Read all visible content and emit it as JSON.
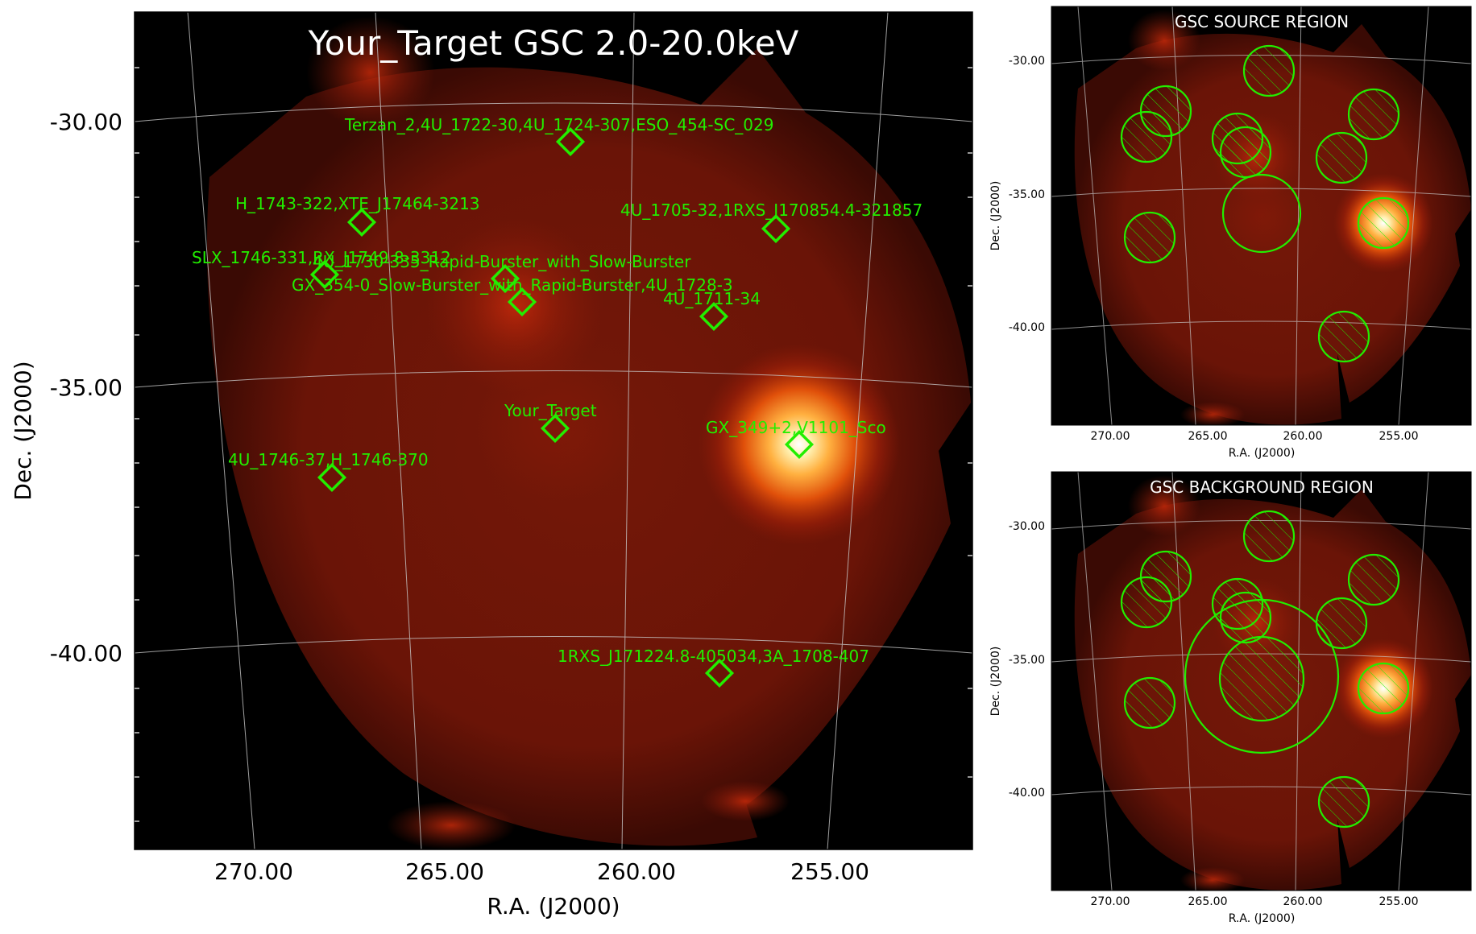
{
  "main": {
    "title": "Your_Target GSC 2.0-20.0keV",
    "xlabel": "R.A. (J2000)",
    "ylabel": "Dec. (J2000)",
    "xticks": [
      "270.00",
      "265.00",
      "260.00",
      "255.00"
    ],
    "yticks": [
      "-30.00",
      "-35.00",
      "-40.00"
    ],
    "sources": [
      "Terzan_2,4U_1722-30,4U_1724-307,ESO_454-SC_029",
      "H_1743-322,XTE_J17464-3213",
      "4U_1705-32,1RXS_J170854.4-321857",
      "SLX_1746-331,RX_J1749.8-3312",
      "4U_1730-335_Rapid-Burster_with_Slow-Burster",
      "GX_354-0_Slow-Burster_with_Rapid-Burster,4U_1728-3",
      "4U_1711-34",
      "Your_Target",
      "GX_349+2,V1101_Sco",
      "4U_1746-37,H_1746-370",
      "1RXS_J171224.8-405034,3A_1708-407"
    ]
  },
  "source_panel": {
    "title": "GSC SOURCE REGION",
    "xlabel": "R.A. (J2000)",
    "ylabel": "Dec. (J2000)",
    "xticks": [
      "270.00",
      "265.00",
      "260.00",
      "255.00"
    ],
    "yticks": [
      "-30.00",
      "-35.00",
      "-40.00"
    ]
  },
  "background_panel": {
    "title": "GSC BACKGROUND REGION",
    "xlabel": "R.A. (J2000)",
    "ylabel": "Dec. (J2000)",
    "xticks": [
      "270.00",
      "265.00",
      "260.00",
      "255.00"
    ],
    "yticks": [
      "-30.00",
      "-35.00",
      "-40.00"
    ]
  },
  "colors": {
    "marker": "#22ee00",
    "grid": "#c8c8c8",
    "background": "#000000",
    "glow": "#8a1a08"
  }
}
